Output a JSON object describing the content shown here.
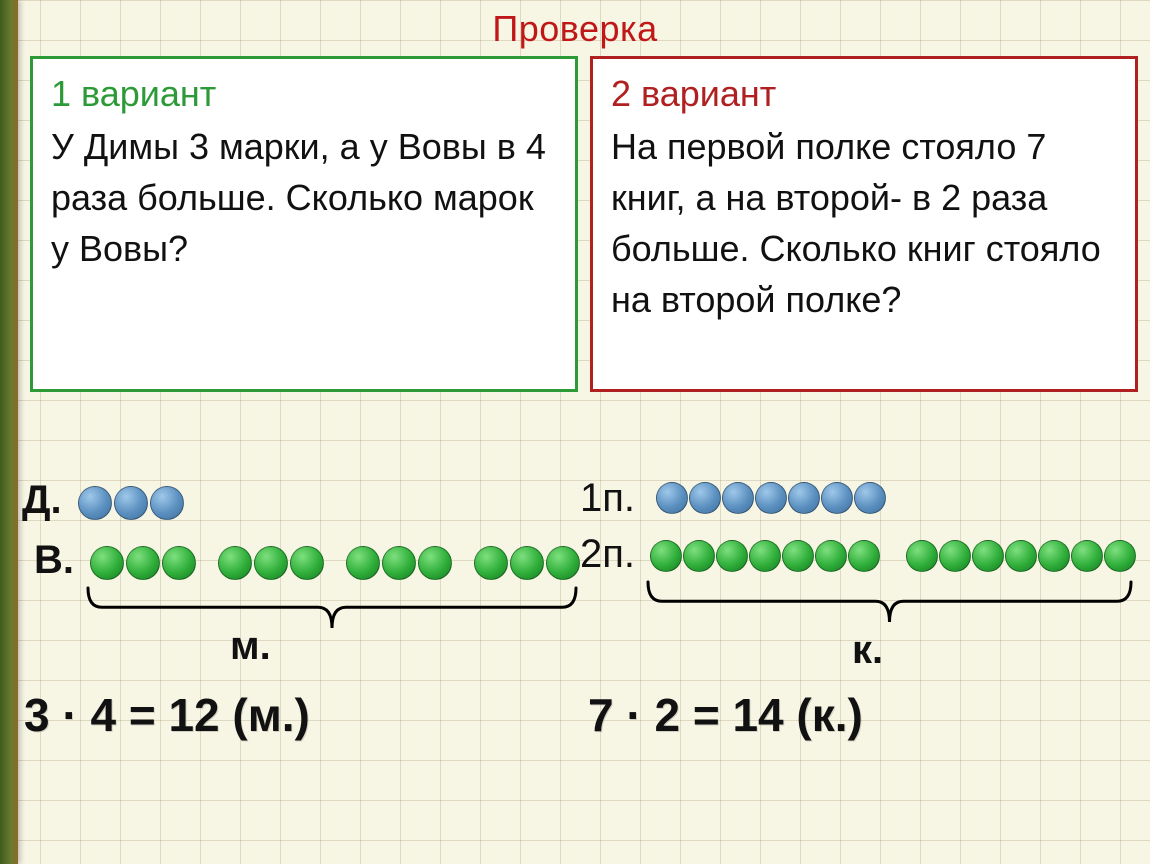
{
  "title": {
    "text": "Проверка",
    "color": "#c01818"
  },
  "variant1": {
    "heading": "1 вариант",
    "heading_color": "#2d9a38",
    "problem": "У Димы 3 марки, а у Вовы в 4 раза больше. Сколько марок у Вовы?",
    "row1_label": "Д.",
    "row1_count": 3,
    "row1_color": "blue",
    "row2_label": "В.",
    "row2_count": 12,
    "row2_groups": 4,
    "row2_group_size": 3,
    "row2_color": "green",
    "brace_unit": "м.",
    "equation": "3 · 4 = 12 (м.)",
    "dot_diameter": 34,
    "dot_gap_inner": 2,
    "dot_gap_group": 22
  },
  "variant2": {
    "heading": "2 вариант",
    "heading_color": "#b02020",
    "problem": "На первой полке стояло 7 книг, а на второй- в 2 раза больше. Сколько книг стояло на  второй полке?",
    "row1_label": "1п.",
    "row1_count": 7,
    "row1_color": "blue",
    "row2_label": "2п.",
    "row2_count": 14,
    "row2_groups": 2,
    "row2_group_size": 7,
    "row2_color": "green",
    "brace_unit": "к.",
    "equation": "7 · 2 = 14 (к.)",
    "dot_diameter": 32,
    "dot_gap_inner": 1,
    "dot_gap_group": 26
  },
  "colors": {
    "background": "#f7f5e3",
    "grid_line": "rgba(150,130,90,0.25)",
    "box_bg": "#ffffff",
    "text": "#111111",
    "brace": "#000000"
  }
}
